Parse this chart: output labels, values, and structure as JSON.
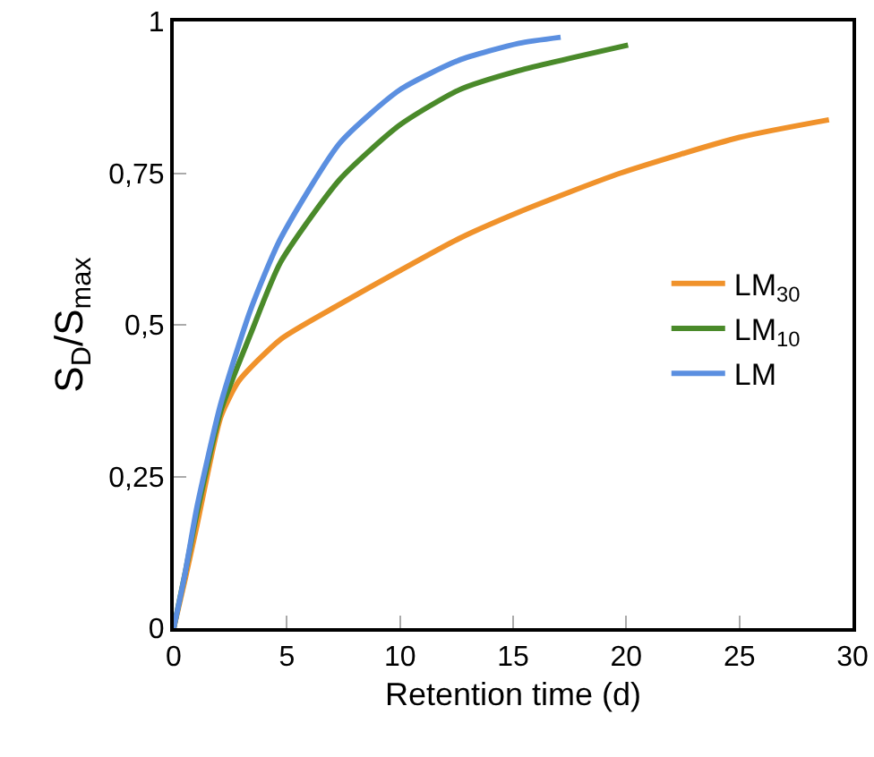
{
  "chart_data": {
    "type": "line",
    "xlabel": "Retention time (d)",
    "ylabel": "S$_{D}$/S$_{max}$",
    "xlim": [
      0,
      30
    ],
    "xticks": [
      0,
      5,
      10,
      15,
      20,
      25,
      30
    ],
    "ylim": [
      0,
      1
    ],
    "yticks": [
      0,
      {
        "value": 0.25,
        "label": "0,25"
      },
      {
        "value": 0.5,
        "label": "0,5"
      },
      {
        "value": 0.75,
        "label": "0,75"
      },
      1
    ],
    "grid": false,
    "legend": "right",
    "marker": "none",
    "line_style": "solid",
    "series": [
      {
        "name": "LM$_{30}$",
        "color": "#f0922b",
        "x": [
          0,
          0.5,
          1.03,
          2.08,
          2.87,
          4.72,
          7.35,
          9.98,
          12.6,
          15.26,
          19.74,
          25.0,
          28.96
        ],
        "values": [
          0,
          0.08,
          0.17,
          0.348,
          0.407,
          0.476,
          0.534,
          0.589,
          0.642,
          0.686,
          0.75,
          0.809,
          0.838
        ]
      },
      {
        "name": "LM$_{10}$",
        "color": "#4a8a2a",
        "x": [
          0,
          0.5,
          1.03,
          2.08,
          3.4,
          4.72,
          7.35,
          9.98,
          12.6,
          15.26,
          20.08
        ],
        "values": [
          0,
          0.09,
          0.19,
          0.358,
          0.485,
          0.603,
          0.74,
          0.829,
          0.887,
          0.919,
          0.961
        ]
      },
      {
        "name": "LM",
        "color": "#5b8fe0",
        "x": [
          0,
          0.5,
          1.03,
          2.08,
          3.4,
          4.72,
          7.35,
          9.98,
          12.6,
          15.26,
          17.1
        ],
        "values": [
          0,
          0.09,
          0.2,
          0.37,
          0.525,
          0.642,
          0.8,
          0.887,
          0.936,
          0.964,
          0.974
        ]
      }
    ]
  }
}
